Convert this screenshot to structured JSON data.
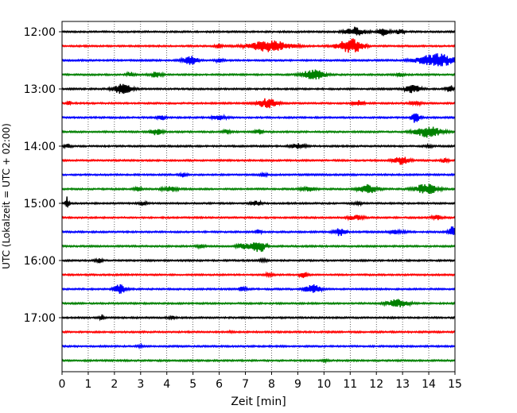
{
  "chart_data": {
    "type": "line",
    "title": "",
    "xlabel": "Zeit  [min]",
    "ylabel": "UTC (Lokalzeit = UTC + 02:00)",
    "xlim": [
      0,
      15
    ],
    "x_ticks": [
      0,
      1,
      2,
      3,
      4,
      5,
      6,
      7,
      8,
      9,
      10,
      11,
      12,
      13,
      14,
      15
    ],
    "x_tick_labels": [
      "0",
      "1",
      "2",
      "3",
      "4",
      "5",
      "6",
      "7",
      "8",
      "9",
      "10",
      "11",
      "12",
      "13",
      "14",
      "15"
    ],
    "y_tick_labels": [
      "12:00",
      "13:00",
      "14:00",
      "15:00",
      "16:00",
      "17:00"
    ],
    "y_tick_rows": [
      0,
      4,
      8,
      12,
      16,
      20
    ],
    "grid": "vertical dotted at each minute",
    "row_start_times": [
      "12:00",
      "12:15",
      "12:30",
      "12:45",
      "13:00",
      "13:15",
      "13:30",
      "13:45",
      "14:00",
      "14:15",
      "14:30",
      "14:45",
      "15:00",
      "15:15",
      "15:30",
      "15:45",
      "16:00",
      "16:15",
      "16:30",
      "16:45",
      "17:00",
      "17:15",
      "17:30",
      "17:45"
    ],
    "row_colors": [
      "#000000",
      "#ff0000",
      "#0000ff",
      "#008000"
    ],
    "bursts": [
      [
        [
          11.2,
          0.25,
          0.7
        ],
        [
          12.3,
          0.15,
          0.6
        ],
        [
          12.9,
          0.1,
          0.4
        ]
      ],
      [
        [
          7.9,
          0.55,
          0.85
        ],
        [
          10.9,
          0.3,
          0.9
        ],
        [
          11.3,
          0.2,
          0.6
        ],
        [
          6.0,
          0.1,
          0.25
        ]
      ],
      [
        [
          4.9,
          0.2,
          0.6
        ],
        [
          14.3,
          0.5,
          1.0
        ],
        [
          6.0,
          0.1,
          0.25
        ]
      ],
      [
        [
          9.6,
          0.3,
          0.75
        ],
        [
          3.6,
          0.15,
          0.45
        ],
        [
          2.6,
          0.1,
          0.35
        ],
        [
          12.9,
          0.1,
          0.25
        ]
      ],
      [
        [
          2.3,
          0.25,
          0.7
        ],
        [
          13.4,
          0.2,
          0.6
        ],
        [
          14.8,
          0.1,
          0.6
        ]
      ],
      [
        [
          7.85,
          0.25,
          0.75
        ],
        [
          0.25,
          0.05,
          0.55
        ],
        [
          11.3,
          0.15,
          0.4
        ],
        [
          13.5,
          0.15,
          0.3
        ]
      ],
      [
        [
          13.5,
          0.1,
          0.9
        ],
        [
          3.8,
          0.1,
          0.4
        ],
        [
          6.0,
          0.2,
          0.3
        ]
      ],
      [
        [
          14.0,
          0.35,
          0.85
        ],
        [
          3.6,
          0.15,
          0.45
        ],
        [
          6.3,
          0.1,
          0.35
        ],
        [
          7.5,
          0.1,
          0.35
        ]
      ],
      [
        [
          9.0,
          0.2,
          0.35
        ],
        [
          0.2,
          0.1,
          0.3
        ],
        [
          14.0,
          0.1,
          0.25
        ]
      ],
      [
        [
          12.95,
          0.2,
          0.6
        ],
        [
          14.6,
          0.1,
          0.3
        ]
      ],
      [
        [
          4.6,
          0.1,
          0.3
        ],
        [
          7.7,
          0.1,
          0.2
        ]
      ],
      [
        [
          11.7,
          0.25,
          0.7
        ],
        [
          13.9,
          0.3,
          0.8
        ],
        [
          4.1,
          0.2,
          0.4
        ],
        [
          9.4,
          0.2,
          0.35
        ],
        [
          2.9,
          0.1,
          0.3
        ]
      ],
      [
        [
          0.2,
          0.05,
          1.0
        ],
        [
          3.1,
          0.1,
          0.3
        ],
        [
          7.4,
          0.15,
          0.3
        ],
        [
          11.3,
          0.1,
          0.25
        ]
      ],
      [
        [
          11.2,
          0.2,
          0.35
        ],
        [
          14.3,
          0.15,
          0.3
        ]
      ],
      [
        [
          10.6,
          0.15,
          0.55
        ],
        [
          14.9,
          0.1,
          0.8
        ],
        [
          7.5,
          0.1,
          0.3
        ],
        [
          12.8,
          0.2,
          0.3
        ]
      ],
      [
        [
          7.5,
          0.2,
          1.0
        ],
        [
          6.9,
          0.15,
          0.45
        ],
        [
          5.3,
          0.1,
          0.25
        ]
      ],
      [
        [
          1.4,
          0.1,
          0.35
        ],
        [
          7.7,
          0.1,
          0.25
        ]
      ],
      [
        [
          9.2,
          0.1,
          0.45
        ],
        [
          7.9,
          0.1,
          0.25
        ]
      ],
      [
        [
          2.2,
          0.15,
          0.7
        ],
        [
          9.55,
          0.2,
          0.75
        ],
        [
          6.9,
          0.1,
          0.3
        ]
      ],
      [
        [
          12.8,
          0.3,
          0.6
        ]
      ],
      [
        [
          1.5,
          0.05,
          0.45
        ],
        [
          4.2,
          0.1,
          0.2
        ]
      ],
      [
        [
          6.5,
          0.1,
          0.15
        ]
      ],
      [
        [
          3.0,
          0.1,
          0.15
        ]
      ],
      [
        [
          10.0,
          0.1,
          0.15
        ]
      ]
    ]
  }
}
